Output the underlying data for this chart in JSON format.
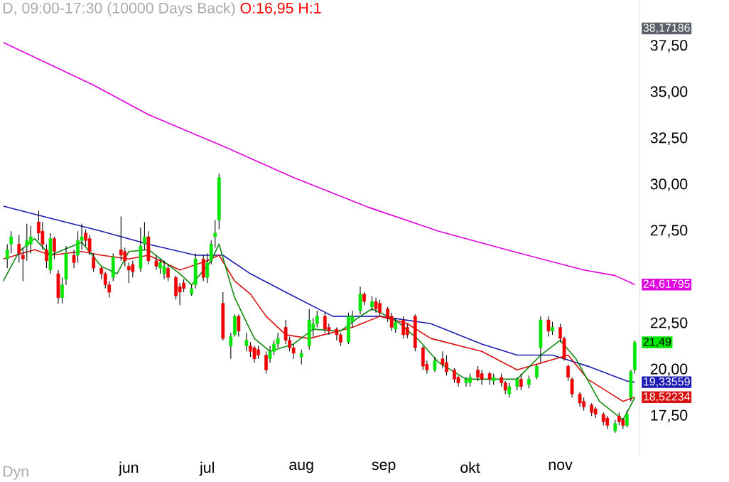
{
  "chart_data": {
    "type": "candlestick",
    "title": "D, 09:00-17:30 (10000 Days Back)",
    "subtitle": "O:16,95 H:1",
    "annotations": [
      "Dyn",
      "38,17186",
      "21,49"
    ],
    "categories": [
      null,
      null,
      null,
      null,
      null,
      null,
      null,
      null,
      null,
      null,
      null,
      null,
      null,
      null,
      null,
      null,
      null,
      null,
      null,
      null,
      null,
      null,
      null,
      null,
      null,
      null,
      null,
      null,
      null,
      null,
      null,
      null,
      "jun",
      null,
      null,
      null,
      null,
      null,
      null,
      null,
      null,
      null,
      null,
      null,
      null,
      null,
      null,
      null,
      null,
      null,
      null,
      null,
      "jul",
      null,
      null,
      null,
      null,
      null,
      null,
      null,
      null,
      null,
      null,
      null,
      null,
      null,
      null,
      null,
      null,
      null,
      null,
      null,
      null,
      null,
      null,
      null,
      "aug",
      null,
      null,
      null,
      null,
      null,
      null,
      null,
      null,
      null,
      null,
      null,
      null,
      null,
      null,
      null,
      null,
      null,
      null,
      null,
      null,
      "sep",
      null,
      null,
      null,
      null,
      null,
      null,
      null,
      null,
      null,
      null,
      null,
      null,
      null,
      null,
      null,
      null,
      null,
      null,
      null,
      null,
      null,
      "okt",
      null,
      null,
      null,
      null,
      null,
      null,
      null,
      null,
      null,
      null,
      null,
      null,
      null,
      null,
      null,
      null,
      null,
      null,
      null,
      null,
      null,
      null,
      "nov",
      null,
      null,
      null,
      null,
      null,
      null,
      null,
      null,
      null,
      null,
      null,
      null,
      null,
      null,
      null,
      null,
      null,
      null,
      null
    ],
    "ohlc": [
      null,
      [
        26.0,
        26.8,
        25.5,
        26.5
      ],
      [
        26.8,
        27.5,
        26.3,
        27.2
      ],
      null,
      [
        26.8,
        27.3,
        25.8,
        26.3
      ],
      [
        26.2,
        26.6,
        24.8,
        26.0
      ],
      [
        26.7,
        27.9,
        25.9,
        27.0
      ],
      [
        26.8,
        27.8,
        26.3,
        27.2
      ],
      null,
      [
        28.0,
        28.6,
        27.0,
        27.4
      ],
      [
        27.5,
        28.0,
        26.5,
        26.8
      ],
      [
        26.5,
        26.8,
        25.5,
        25.9
      ],
      [
        25.4,
        27.4,
        25.2,
        27.1
      ],
      [
        27.1,
        27.2,
        26.0,
        26.4
      ],
      [
        25.2,
        25.4,
        23.6,
        23.9
      ],
      [
        23.9,
        25.0,
        23.6,
        24.6
      ],
      [
        24.9,
        26.7,
        24.6,
        26.3
      ],
      null,
      [
        26.2,
        26.5,
        25.5,
        25.8
      ],
      [
        26.2,
        27.5,
        25.8,
        27.0
      ],
      [
        27.0,
        27.9,
        26.5,
        27.2
      ],
      [
        27.4,
        27.6,
        26.7,
        27.0
      ],
      [
        27.1,
        27.3,
        26.2,
        26.4
      ],
      [
        26.1,
        26.3,
        25.3,
        25.5
      ],
      null,
      [
        25.5,
        25.6,
        24.9,
        25.2
      ],
      [
        25.2,
        25.3,
        24.4,
        24.6
      ],
      [
        24.6,
        24.8,
        23.9,
        24.2
      ],
      [
        25.0,
        26.3,
        24.8,
        26.1
      ],
      null,
      [
        26.5,
        28.3,
        25.9,
        26.2
      ],
      [
        26.4,
        26.6,
        25.6,
        25.9
      ],
      [
        25.6,
        25.8,
        24.7,
        25.4
      ],
      [
        25.7,
        25.9,
        25.0,
        25.3
      ],
      null,
      [
        25.5,
        27.7,
        25.3,
        26.7
      ],
      [
        26.8,
        28.0,
        26.5,
        27.2
      ],
      [
        27.2,
        27.5,
        25.7,
        25.9
      ],
      null,
      [
        25.9,
        26.2,
        25.4,
        25.6
      ],
      [
        25.5,
        26.0,
        25.2,
        25.8
      ],
      [
        25.2,
        25.9,
        24.9,
        25.6
      ],
      [
        25.5,
        25.7,
        24.8,
        25.0
      ],
      null,
      [
        25.0,
        25.1,
        23.8,
        24.0
      ],
      [
        24.5,
        24.7,
        23.5,
        24.2
      ],
      [
        24.7,
        24.9,
        24.2,
        24.4
      ],
      null,
      [
        24.1,
        24.6,
        24.0,
        24.4
      ],
      [
        24.6,
        26.3,
        24.4,
        26.0
      ],
      null,
      [
        26.0,
        26.2,
        24.8,
        25.0
      ],
      [
        25.0,
        26.3,
        24.7,
        25.8
      ],
      [
        25.9,
        27.0,
        25.7,
        26.8
      ],
      [
        27.2,
        28.1,
        26.6,
        27.4
      ],
      [
        28.1,
        30.6,
        27.6,
        30.4
      ],
      [
        23.6,
        24.2,
        21.6,
        21.7
      ],
      null,
      [
        21.3,
        22.0,
        20.6,
        21.8
      ],
      [
        21.9,
        23.0,
        21.8,
        22.9
      ],
      [
        22.9,
        23.0,
        21.8,
        22.1
      ],
      null,
      [
        21.3,
        22.0,
        21.0,
        21.6
      ],
      [
        21.3,
        21.5,
        20.7,
        21.0
      ],
      [
        21.2,
        21.3,
        20.4,
        20.6
      ],
      [
        21.1,
        21.3,
        20.6,
        20.8
      ],
      null,
      [
        20.8,
        21.0,
        19.8,
        20.0
      ],
      [
        20.6,
        21.3,
        20.4,
        21.0
      ],
      [
        21.0,
        21.6,
        20.8,
        21.4
      ],
      [
        21.4,
        22.0,
        21.2,
        21.7
      ],
      null,
      [
        22.3,
        22.7,
        21.4,
        21.6
      ],
      [
        21.6,
        21.8,
        21.0,
        21.2
      ],
      [
        21.2,
        21.4,
        20.6,
        20.9
      ],
      null,
      [
        20.7,
        21.1,
        20.3,
        20.9
      ],
      null,
      [
        21.3,
        23.3,
        21.1,
        22.7
      ],
      [
        22.2,
        22.8,
        21.8,
        22.5
      ],
      [
        22.5,
        23.2,
        22.3,
        22.9
      ],
      null,
      [
        22.9,
        23.1,
        22.0,
        22.2
      ],
      [
        22.3,
        22.5,
        21.9,
        22.1
      ],
      null,
      [
        22.2,
        22.3,
        21.6,
        21.9
      ],
      [
        21.9,
        22.0,
        21.3,
        21.5
      ],
      null,
      [
        21.5,
        23.1,
        21.4,
        22.9
      ],
      [
        22.6,
        23.2,
        22.3,
        22.9
      ],
      null,
      [
        23.2,
        24.5,
        23.0,
        24.1
      ],
      [
        24.1,
        24.2,
        23.5,
        23.7
      ],
      null,
      [
        23.4,
        24.0,
        23.2,
        23.7
      ],
      [
        23.7,
        23.9,
        23.1,
        23.3
      ],
      [
        23.6,
        23.8,
        22.9,
        23.1
      ],
      null,
      [
        23.3,
        23.4,
        22.6,
        22.8
      ],
      [
        22.9,
        23.1,
        22.1,
        22.3
      ],
      [
        22.2,
        22.8,
        22.0,
        22.6
      ],
      null,
      [
        22.7,
        22.9,
        21.7,
        21.9
      ],
      [
        22.3,
        22.5,
        21.7,
        21.9
      ],
      null,
      [
        22.9,
        23.0,
        21.0,
        21.2
      ],
      null,
      [
        21.2,
        21.3,
        20.0,
        20.2
      ],
      [
        20.3,
        20.5,
        19.8,
        20.0
      ],
      null,
      [
        20.0,
        20.7,
        19.9,
        20.5
      ],
      null,
      [
        20.6,
        21.0,
        20.1,
        20.3
      ],
      [
        20.4,
        20.8,
        19.7,
        19.9
      ],
      null,
      [
        20.0,
        20.1,
        19.3,
        19.5
      ],
      [
        19.6,
        19.7,
        19.1,
        19.3
      ],
      null,
      [
        19.3,
        19.6,
        19.1,
        19.5
      ],
      [
        19.3,
        19.8,
        19.1,
        19.6
      ],
      null,
      [
        20.0,
        20.2,
        19.4,
        19.6
      ],
      [
        19.8,
        20.0,
        19.2,
        19.5
      ],
      null,
      [
        19.8,
        19.9,
        19.2,
        19.5
      ],
      [
        19.4,
        19.8,
        19.2,
        19.6
      ],
      null,
      [
        19.6,
        19.8,
        19.1,
        19.3
      ],
      [
        19.3,
        19.4,
        18.7,
        18.9
      ],
      [
        18.7,
        19.3,
        18.5,
        19.1
      ],
      null,
      [
        19.1,
        19.6,
        18.9,
        19.5
      ],
      [
        19.5,
        19.8,
        18.9,
        19.1
      ],
      null,
      [
        19.2,
        19.7,
        19.0,
        19.5
      ],
      null,
      [
        19.6,
        20.3,
        19.5,
        20.2
      ],
      [
        21.2,
        22.9,
        20.4,
        22.7
      ],
      null,
      [
        22.7,
        22.9,
        21.8,
        22.1
      ],
      [
        22.1,
        22.6,
        21.9,
        22.3
      ],
      null,
      [
        22.3,
        22.5,
        21.5,
        21.7
      ],
      [
        21.7,
        21.8,
        20.5,
        20.6
      ],
      [
        20.2,
        20.3,
        19.4,
        19.6
      ],
      [
        19.5,
        19.6,
        18.5,
        18.7
      ],
      null,
      [
        18.7,
        18.8,
        18.0,
        18.2
      ],
      [
        18.3,
        18.5,
        17.8,
        18.0
      ],
      null,
      [
        18.1,
        18.2,
        17.5,
        17.7
      ],
      [
        17.9,
        18.0,
        17.4,
        17.6
      ],
      null,
      [
        17.6,
        17.7,
        17.0,
        17.2
      ],
      [
        17.4,
        17.5,
        16.8,
        17.0
      ],
      null,
      [
        16.7,
        17.3,
        16.6,
        17.1
      ],
      [
        17.5,
        17.7,
        17.0,
        17.2
      ],
      [
        17.3,
        17.4,
        16.8,
        17.0
      ],
      [
        17.0,
        17.8,
        16.9,
        17.6
      ],
      [
        18.5,
        20.0,
        18.3,
        19.9
      ],
      [
        20.0,
        21.6,
        19.8,
        21.49
      ]
    ],
    "series": [
      {
        "type": "line",
        "color": "#e000e0",
        "values": [
          37.7,
          null,
          null,
          null,
          null,
          null,
          null,
          null,
          null,
          null,
          null,
          null,
          null,
          null,
          null,
          null,
          null,
          null,
          null,
          null,
          null,
          null,
          null,
          35.4,
          null,
          null,
          null,
          null,
          null,
          null,
          null,
          null,
          null,
          null,
          null,
          null,
          null,
          33.8,
          null,
          null,
          null,
          null,
          null,
          null,
          null,
          null,
          null,
          null,
          null,
          null,
          null,
          null,
          null,
          null,
          null,
          null,
          32.1,
          null,
          null,
          null,
          null,
          null,
          null,
          null,
          null,
          null,
          null,
          null,
          null,
          null,
          null,
          null,
          null,
          null,
          30.4,
          null,
          null,
          null,
          null,
          null,
          null,
          null,
          null,
          null,
          null,
          null,
          null,
          null,
          null,
          null,
          null,
          null,
          null,
          28.8,
          null,
          null,
          null,
          null,
          null,
          null,
          null,
          null,
          null,
          null,
          null,
          null,
          null,
          null,
          null,
          null,
          null,
          27.5,
          null,
          null,
          null,
          null,
          null,
          null,
          null,
          null,
          null,
          null,
          null,
          null,
          null,
          null,
          null,
          null,
          null,
          null,
          26.4,
          null,
          null,
          null,
          null,
          null,
          null,
          null,
          null,
          null,
          null,
          null,
          null,
          null,
          null,
          null,
          null,
          null,
          25.4,
          null,
          null,
          null,
          null,
          null,
          null,
          null,
          25.1,
          null,
          null,
          null,
          null,
          24.61795
        ],
        "value_labels": [
          null,
          null,
          null,
          null,
          null,
          null,
          null,
          null,
          null,
          null,
          null,
          null,
          null,
          null,
          null,
          null,
          null,
          null,
          null,
          null,
          null,
          null,
          null,
          null,
          null,
          null,
          null,
          null,
          null,
          null,
          null,
          null,
          null,
          null,
          null,
          null,
          null,
          null,
          null,
          null,
          null,
          null,
          null,
          null,
          null,
          null,
          null,
          null,
          null,
          null,
          null,
          null,
          null,
          null,
          null,
          null,
          null,
          null,
          null,
          null,
          null,
          null,
          null,
          null,
          null,
          null,
          null,
          null,
          null,
          null,
          null,
          null,
          null,
          null,
          null,
          null,
          null,
          null,
          null,
          null,
          null,
          null,
          null,
          null,
          null,
          null,
          null,
          null,
          null,
          null,
          null,
          null,
          null,
          null,
          null,
          null,
          null,
          null,
          null,
          null,
          null,
          null,
          null,
          null,
          null,
          null,
          null,
          null,
          null,
          null,
          null,
          null,
          null,
          null,
          null,
          null,
          null,
          null,
          null,
          null,
          null,
          null,
          null,
          null,
          null,
          null,
          null,
          null,
          null,
          null,
          null,
          null,
          null,
          null,
          null,
          null,
          null,
          null,
          null,
          null,
          null,
          null,
          null,
          null,
          null,
          null,
          null,
          null,
          null,
          null,
          null,
          null,
          null,
          null,
          null,
          null,
          null,
          null,
          null,
          null,
          null,
          "24,61795"
        ]
      },
      {
        "type": "line",
        "color": "#1c1cb4",
        "values": [
          28.85,
          null,
          null,
          null,
          null,
          null,
          null,
          null,
          null,
          null,
          null,
          null,
          28.2,
          null,
          null,
          null,
          null,
          null,
          null,
          null,
          null,
          null,
          null,
          null,
          null,
          27.5,
          null,
          null,
          null,
          null,
          null,
          null,
          null,
          null,
          null,
          null,
          null,
          26.8,
          null,
          null,
          null,
          null,
          null,
          null,
          null,
          null,
          null,
          null,
          null,
          26.2,
          null,
          null,
          null,
          null,
          null,
          null,
          26.2,
          null,
          null,
          null,
          null,
          null,
          null,
          25.2,
          null,
          null,
          null,
          null,
          null,
          null,
          null,
          null,
          24.2,
          null,
          null,
          null,
          null,
          null,
          null,
          null,
          null,
          null,
          null,
          null,
          22.9,
          null,
          null,
          null,
          null,
          null,
          null,
          null,
          null,
          null,
          null,
          null,
          22.9,
          null,
          null,
          null,
          null,
          null,
          null,
          null,
          null,
          null,
          null,
          null,
          null,
          22.5,
          null,
          null,
          null,
          null,
          null,
          null,
          null,
          null,
          null,
          null,
          null,
          null,
          21.4,
          null,
          null,
          null,
          null,
          null,
          null,
          null,
          null,
          20.8,
          null,
          null,
          null,
          null,
          null,
          null,
          null,
          null,
          20.8,
          null,
          null,
          null,
          null,
          null,
          null,
          null,
          null,
          20.2,
          null,
          null,
          null,
          null,
          null,
          null,
          null,
          null,
          null,
          19.4,
          null,
          19.33559
        ],
        "value_labels": [
          null,
          null,
          null,
          null,
          null,
          null,
          null,
          null,
          null,
          null,
          null,
          null,
          null,
          null,
          null,
          null,
          null,
          null,
          null,
          null,
          null,
          null,
          null,
          null,
          null,
          null,
          null,
          null,
          null,
          null,
          null,
          null,
          null,
          null,
          null,
          null,
          null,
          null,
          null,
          null,
          null,
          null,
          null,
          null,
          null,
          null,
          null,
          null,
          null,
          null,
          null,
          null,
          null,
          null,
          null,
          null,
          null,
          null,
          null,
          null,
          null,
          null,
          null,
          null,
          null,
          null,
          null,
          null,
          null,
          null,
          null,
          null,
          null,
          null,
          null,
          null,
          null,
          null,
          null,
          null,
          null,
          null,
          null,
          null,
          null,
          null,
          null,
          null,
          null,
          null,
          null,
          null,
          null,
          null,
          null,
          null,
          null,
          null,
          null,
          null,
          null,
          null,
          null,
          null,
          null,
          null,
          null,
          null,
          null,
          null,
          null,
          null,
          null,
          null,
          null,
          null,
          null,
          null,
          null,
          null,
          null,
          null,
          null,
          null,
          null,
          null,
          null,
          null,
          null,
          null,
          null,
          null,
          null,
          null,
          null,
          null,
          null,
          null,
          null,
          null,
          null,
          null,
          null,
          null,
          null,
          null,
          null,
          null,
          null,
          null,
          null,
          null,
          null,
          null,
          null,
          null,
          null,
          null,
          null,
          null,
          null,
          "19,33559"
        ]
      },
      {
        "type": "line",
        "color": "#d81010",
        "values": [
          26.0,
          null,
          null,
          null,
          null,
          null,
          null,
          null,
          26.5,
          null,
          null,
          null,
          26.2,
          null,
          null,
          null,
          null,
          null,
          null,
          null,
          26.4,
          null,
          null,
          null,
          null,
          26.2,
          null,
          null,
          null,
          null,
          null,
          null,
          26.0,
          null,
          null,
          null,
          null,
          26.2,
          null,
          null,
          null,
          null,
          null,
          null,
          null,
          25.4,
          null,
          null,
          null,
          null,
          null,
          null,
          25.9,
          null,
          null,
          26.2,
          null,
          null,
          null,
          24.8,
          null,
          null,
          null,
          24.1,
          null,
          null,
          null,
          22.9,
          null,
          null,
          null,
          null,
          21.9,
          null,
          null,
          null,
          null,
          null,
          21.7,
          null,
          null,
          null,
          null,
          null,
          null,
          null,
          null,
          null,
          null,
          22.3,
          null,
          null,
          null,
          null,
          null,
          null,
          22.9,
          null,
          null,
          null,
          null,
          null,
          null,
          22.5,
          null,
          null,
          null,
          null,
          null,
          21.7,
          null,
          null,
          null,
          null,
          null,
          null,
          null,
          null,
          null,
          null,
          null,
          null,
          21.0,
          null,
          null,
          null,
          null,
          null,
          null,
          null,
          null,
          20.0,
          null,
          null,
          null,
          null,
          null,
          null,
          null,
          null,
          null,
          null,
          null,
          null,
          20.8,
          null,
          null,
          null,
          null,
          19.5,
          null,
          null,
          null,
          null,
          null,
          null,
          null,
          null,
          18.3,
          null,
          null,
          18.52234
        ],
        "value_labels": [
          null,
          null,
          null,
          null,
          null,
          null,
          null,
          null,
          null,
          null,
          null,
          null,
          null,
          null,
          null,
          null,
          null,
          null,
          null,
          null,
          null,
          null,
          null,
          null,
          null,
          null,
          null,
          null,
          null,
          null,
          null,
          null,
          null,
          null,
          null,
          null,
          null,
          null,
          null,
          null,
          null,
          null,
          null,
          null,
          null,
          null,
          null,
          null,
          null,
          null,
          null,
          null,
          null,
          null,
          null,
          null,
          null,
          null,
          null,
          null,
          null,
          null,
          null,
          null,
          null,
          null,
          null,
          null,
          null,
          null,
          null,
          null,
          null,
          null,
          null,
          null,
          null,
          null,
          null,
          null,
          null,
          null,
          null,
          null,
          null,
          null,
          null,
          null,
          null,
          null,
          null,
          null,
          null,
          null,
          null,
          null,
          null,
          null,
          null,
          null,
          null,
          null,
          null,
          null,
          null,
          null,
          null,
          null,
          null,
          null,
          null,
          null,
          null,
          null,
          null,
          null,
          null,
          null,
          null,
          null,
          null,
          null,
          null,
          null,
          null,
          null,
          null,
          null,
          null,
          null,
          null,
          null,
          null,
          null,
          null,
          null,
          null,
          null,
          null,
          null,
          null,
          null,
          null,
          null,
          null,
          null,
          null,
          null,
          null,
          null,
          null,
          null,
          null,
          null,
          null,
          null,
          null,
          null,
          null,
          null,
          null,
          "18,52234"
        ]
      },
      {
        "type": "line",
        "color": "#108a10",
        "values": [
          24.8,
          null,
          null,
          null,
          26.4,
          null,
          null,
          null,
          27.1,
          null,
          null,
          null,
          26.2,
          null,
          null,
          null,
          null,
          null,
          null,
          null,
          26.9,
          null,
          null,
          null,
          null,
          25.6,
          null,
          null,
          null,
          25.2,
          null,
          null,
          26.4,
          null,
          null,
          null,
          null,
          26.5,
          null,
          null,
          null,
          null,
          null,
          null,
          null,
          25.2,
          null,
          null,
          24.6,
          null,
          null,
          null,
          null,
          25.9,
          null,
          26.8,
          null,
          null,
          24.6,
          23.9,
          null,
          null,
          null,
          null,
          21.7,
          null,
          null,
          null,
          21.0,
          null,
          null,
          null,
          null,
          null,
          21.4,
          null,
          null,
          null,
          null,
          22.2,
          null,
          null,
          null,
          null,
          null,
          null,
          22.1,
          null,
          null,
          null,
          null,
          22.9,
          null,
          null,
          23.3,
          null,
          null,
          null,
          null,
          null,
          22.7,
          null,
          null,
          null,
          null,
          null,
          21.6,
          null,
          null,
          null,
          null,
          20.4,
          null,
          null,
          null,
          null,
          null,
          null,
          19.5,
          null,
          null,
          null,
          19.5,
          null,
          null,
          null,
          null,
          null,
          null,
          null,
          null,
          19.5,
          null,
          null,
          null,
          null,
          null,
          20.8,
          null,
          null,
          null,
          null,
          21.6,
          null,
          null,
          null,
          20.6,
          null,
          null,
          null,
          null,
          null,
          18.3,
          null,
          null,
          null,
          null,
          null,
          17.3,
          null,
          null,
          18.5
        ]
      }
    ],
    "ylim": [
      15.4,
      40
    ],
    "yticks": [
      {
        "value": 17.5,
        "label": "17,50"
      },
      {
        "value": 20,
        "label": "20,00"
      },
      {
        "value": 22.5,
        "label": "22,50"
      },
      {
        "value": 27.5,
        "label": "27,50"
      },
      {
        "value": 30,
        "label": "30,00"
      },
      {
        "value": 32.5,
        "label": "32,50"
      },
      {
        "value": 35,
        "label": "35,00"
      },
      {
        "value": 37.5,
        "label": "37,50"
      }
    ]
  }
}
